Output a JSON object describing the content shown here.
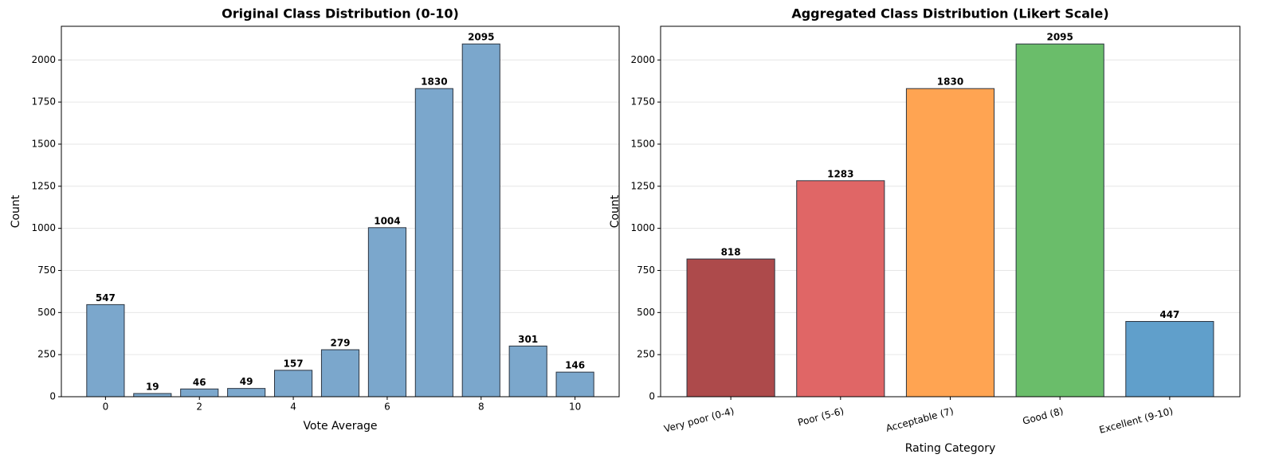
{
  "chart_data": [
    {
      "type": "bar",
      "title": "Original Class Distribution (0-10)",
      "xlabel": "Vote Average",
      "ylabel": "Count",
      "x": [
        0,
        1,
        2,
        3,
        4,
        5,
        6,
        7,
        8,
        9,
        10
      ],
      "values": [
        547,
        19,
        46,
        49,
        157,
        279,
        1004,
        1830,
        2095,
        301,
        146
      ],
      "color": "#7ba7cc",
      "edgecolor": "#2b3440",
      "xlim": [
        -0.94,
        10.94
      ],
      "xticks": [
        0,
        2,
        4,
        6,
        8,
        10
      ],
      "ylim": [
        0,
        2200
      ],
      "yticks": [
        0,
        250,
        500,
        750,
        1000,
        1250,
        1500,
        1750,
        2000
      ],
      "grid": true
    },
    {
      "type": "bar",
      "title": "Aggregated Class Distribution (Likert Scale)",
      "xlabel": "Rating Category",
      "ylabel": "Count",
      "categories": [
        "Very poor (0-4)",
        "Poor (5-6)",
        "Acceptable (7)",
        "Good (8)",
        "Excellent (9-10)"
      ],
      "values": [
        818,
        1283,
        1830,
        2095,
        447
      ],
      "colors": [
        "#ad4a4b",
        "#e06666",
        "#ffa452",
        "#6abd6a",
        "#609fcb"
      ],
      "edgecolor": "#2b3440",
      "ylim": [
        0,
        2200
      ],
      "yticks": [
        0,
        250,
        500,
        750,
        1000,
        1250,
        1500,
        1750,
        2000
      ],
      "grid": true
    }
  ]
}
